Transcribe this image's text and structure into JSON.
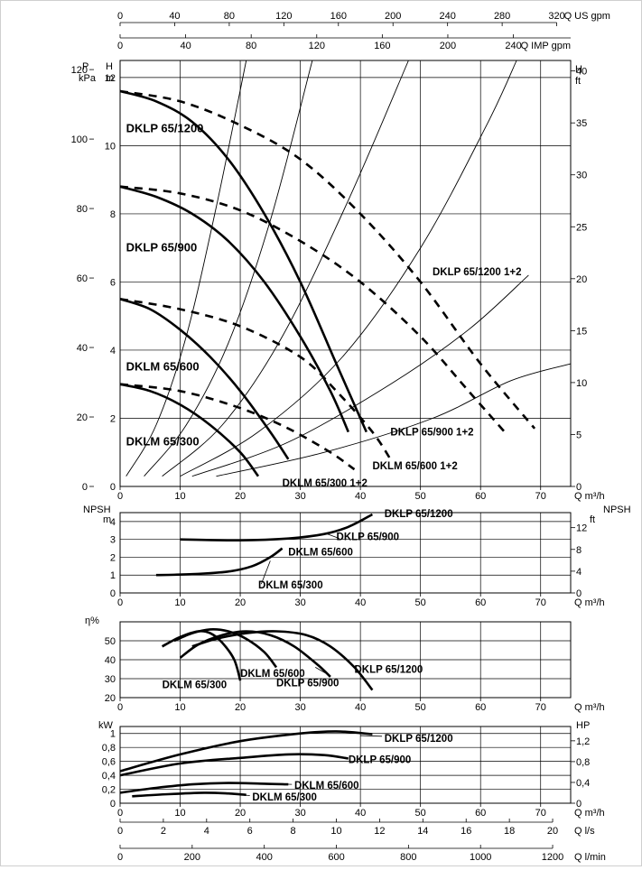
{
  "chart_data": [
    {
      "id": "top-axes",
      "type": "axis",
      "us_gpm": {
        "label": "Q US gpm",
        "ticks": [
          0,
          40,
          80,
          120,
          160,
          200,
          240,
          280,
          320
        ]
      },
      "imp_gpm": {
        "label": "Q IMP gpm",
        "ticks": [
          0,
          40,
          80,
          120,
          160,
          200,
          240
        ]
      }
    },
    {
      "id": "head",
      "type": "line",
      "xlabel": "Q m³/h",
      "ylabel_left_outer": "P",
      "ylabel_left_outer_unit": "kPa",
      "ylabel_left": "H",
      "ylabel_left_unit": "m",
      "ylabel_right": "H",
      "ylabel_right_unit": "ft",
      "xlim": [
        0,
        75
      ],
      "ylim": [
        0,
        12.5
      ],
      "xticks": [
        0,
        10,
        20,
        30,
        40,
        50,
        60,
        70
      ],
      "yticks_m": [
        0,
        2,
        4,
        6,
        8,
        10,
        12
      ],
      "yticks_kpa": [
        0,
        20,
        40,
        60,
        80,
        100,
        120
      ],
      "yticks_ft": [
        0,
        5,
        10,
        15,
        20,
        25,
        30,
        35,
        40
      ],
      "grid": true,
      "series": [
        {
          "name": "DKLP 65/1200",
          "dashed": false,
          "points": [
            [
              0,
              11.6
            ],
            [
              6,
              11.3
            ],
            [
              12,
              10.7
            ],
            [
              18,
              9.6
            ],
            [
              24,
              8.0
            ],
            [
              30,
              6.0
            ],
            [
              36,
              3.6
            ],
            [
              41,
              1.6
            ]
          ]
        },
        {
          "name": "DKLP 65/900",
          "dashed": false,
          "points": [
            [
              0,
              8.8
            ],
            [
              6,
              8.5
            ],
            [
              12,
              8.0
            ],
            [
              18,
              7.2
            ],
            [
              24,
              6.0
            ],
            [
              30,
              4.4
            ],
            [
              35,
              2.8
            ],
            [
              38,
              1.6
            ]
          ]
        },
        {
          "name": "DKLM 65/600",
          "dashed": false,
          "points": [
            [
              0,
              5.5
            ],
            [
              5,
              5.2
            ],
            [
              10,
              4.6
            ],
            [
              15,
              3.8
            ],
            [
              20,
              2.8
            ],
            [
              25,
              1.6
            ],
            [
              28,
              0.8
            ]
          ]
        },
        {
          "name": "DKLM 65/300",
          "dashed": false,
          "points": [
            [
              0,
              3.0
            ],
            [
              5,
              2.8
            ],
            [
              10,
              2.4
            ],
            [
              15,
              1.8
            ],
            [
              20,
              1.0
            ],
            [
              23,
              0.3
            ]
          ]
        },
        {
          "name": "DKLP 65/1200 1+2",
          "dashed": true,
          "points": [
            [
              0,
              11.6
            ],
            [
              10,
              11.3
            ],
            [
              20,
              10.6
            ],
            [
              30,
              9.6
            ],
            [
              40,
              8.0
            ],
            [
              50,
              6.0
            ],
            [
              60,
              3.6
            ],
            [
              69,
              1.7
            ]
          ]
        },
        {
          "name": "DKLP 65/900 1+2",
          "dashed": true,
          "points": [
            [
              0,
              8.8
            ],
            [
              10,
              8.6
            ],
            [
              20,
              8.1
            ],
            [
              30,
              7.2
            ],
            [
              40,
              6.0
            ],
            [
              50,
              4.4
            ],
            [
              58,
              2.8
            ],
            [
              64,
              1.6
            ]
          ]
        },
        {
          "name": "DKLM 65/600 1+2",
          "dashed": true,
          "points": [
            [
              0,
              5.5
            ],
            [
              10,
              5.2
            ],
            [
              20,
              4.7
            ],
            [
              30,
              3.8
            ],
            [
              36,
              2.8
            ],
            [
              42,
              1.6
            ],
            [
              45,
              0.8
            ]
          ]
        },
        {
          "name": "DKLM 65/300 1+2",
          "dashed": true,
          "points": [
            [
              0,
              3.0
            ],
            [
              10,
              2.8
            ],
            [
              20,
              2.3
            ],
            [
              28,
              1.7
            ],
            [
              35,
              1.0
            ],
            [
              39,
              0.5
            ]
          ]
        },
        {
          "name": "",
          "dashed": false,
          "system": true,
          "points": [
            [
              1,
              0.3
            ],
            [
              6,
              1.8
            ],
            [
              11,
              4.4
            ],
            [
              16,
              8.2
            ],
            [
              21,
              12.5
            ]
          ]
        },
        {
          "name": "",
          "dashed": false,
          "system": true,
          "points": [
            [
              4,
              0.3
            ],
            [
              11,
              1.8
            ],
            [
              18,
              4.2
            ],
            [
              25,
              7.8
            ],
            [
              32,
              12.5
            ]
          ]
        },
        {
          "name": "",
          "dashed": false,
          "system": true,
          "points": [
            [
              7,
              0.3
            ],
            [
              17,
              1.8
            ],
            [
              27,
              4.4
            ],
            [
              38,
              8.4
            ],
            [
              48,
              12.5
            ]
          ]
        },
        {
          "name": "",
          "dashed": false,
          "system": true,
          "points": [
            [
              10,
              0.3
            ],
            [
              23,
              1.6
            ],
            [
              37,
              3.8
            ],
            [
              50,
              7.0
            ],
            [
              61,
              10.6
            ],
            [
              66,
              12.5
            ]
          ]
        },
        {
          "name": "",
          "dashed": false,
          "system": true,
          "points": [
            [
              12,
              0.3
            ],
            [
              28,
              1.3
            ],
            [
              45,
              3.0
            ],
            [
              58,
              4.6
            ],
            [
              68,
              6.2
            ]
          ]
        },
        {
          "name": "",
          "dashed": false,
          "system": true,
          "points": [
            [
              16,
              0.3
            ],
            [
              34,
              1.0
            ],
            [
              52,
              2.0
            ],
            [
              65,
              3.1
            ],
            [
              75,
              3.6
            ]
          ]
        }
      ],
      "labels": [
        {
          "text": "DKLP 65/1200",
          "x": 1,
          "y": 10.4
        },
        {
          "text": "DKLP 65/900",
          "x": 1,
          "y": 6.9
        },
        {
          "text": "DKLM 65/600",
          "x": 1,
          "y": 3.4
        },
        {
          "text": "DKLM 65/300",
          "x": 1,
          "y": 1.2
        },
        {
          "text": "DKLP 65/1200 1+2",
          "x": 52,
          "y": 6.2
        },
        {
          "text": "DKLP 65/900 1+2",
          "x": 45,
          "y": 1.5
        },
        {
          "text": "DKLM 65/600 1+2",
          "x": 42,
          "y": 0.5
        },
        {
          "text": "DKLM 65/300 1+2",
          "x": 27,
          "y": 0.0
        }
      ]
    },
    {
      "id": "npsh",
      "type": "line",
      "xlabel": "Q m³/h",
      "ylabel_left": "NPSH",
      "ylabel_left_unit": "m",
      "ylabel_right": "NPSH",
      "ylabel_right_unit": "ft",
      "xlim": [
        0,
        75
      ],
      "ylim": [
        0,
        4.5
      ],
      "xticks": [
        0,
        10,
        20,
        30,
        40,
        50,
        60,
        70
      ],
      "yticks_m": [
        0,
        1,
        2,
        3,
        4
      ],
      "yticks_ft": [
        0,
        4,
        8,
        12
      ],
      "grid": true,
      "series": [
        {
          "name": "DKLP 65/1200",
          "points": [
            [
              10,
              3.0
            ],
            [
              20,
              2.95
            ],
            [
              28,
              3.05
            ],
            [
              34,
              3.3
            ],
            [
              38,
              3.7
            ],
            [
              42,
              4.4
            ]
          ]
        },
        {
          "name": "DKLM 65/600",
          "points": [
            [
              6,
              1.0
            ],
            [
              12,
              1.05
            ],
            [
              18,
              1.2
            ],
            [
              22,
              1.5
            ],
            [
              25,
              2.0
            ],
            [
              27,
              2.5
            ]
          ]
        }
      ],
      "labels": [
        {
          "text": "DKLP 65/1200",
          "x": 44,
          "y": 4.25
        },
        {
          "text": "DKLP 65/900",
          "x": 36,
          "y": 2.95
        },
        {
          "text": "DKLM 65/600",
          "x": 28,
          "y": 2.1
        },
        {
          "text": "DKLM 65/300",
          "x": 23,
          "y": 0.25
        }
      ]
    },
    {
      "id": "eff",
      "type": "line",
      "xlabel": "Q m³/h",
      "ylabel_left": "η%",
      "xlim": [
        0,
        75
      ],
      "ylim": [
        20,
        60
      ],
      "xticks": [
        0,
        10,
        20,
        30,
        40,
        50,
        60,
        70
      ],
      "yticks": [
        20,
        30,
        40,
        50
      ],
      "grid": true,
      "series": [
        {
          "name": "DKLM 65/300",
          "points": [
            [
              7,
              47
            ],
            [
              10,
              52
            ],
            [
              13,
              55
            ],
            [
              15,
              54
            ],
            [
              17,
              49
            ],
            [
              19,
              40
            ],
            [
              20,
              29
            ]
          ]
        },
        {
          "name": "DKLM 65/600",
          "points": [
            [
              9,
              50
            ],
            [
              12,
              54
            ],
            [
              15,
              56
            ],
            [
              18,
              55
            ],
            [
              21,
              51
            ],
            [
              24,
              44
            ],
            [
              26,
              36
            ]
          ]
        },
        {
          "name": "DKLP 65/900",
          "points": [
            [
              10,
              41
            ],
            [
              13,
              48
            ],
            [
              17,
              53
            ],
            [
              21,
              55
            ],
            [
              25,
              53
            ],
            [
              29,
              47
            ],
            [
              33,
              37
            ],
            [
              35,
              31
            ]
          ]
        },
        {
          "name": "DKLP 65/1200",
          "points": [
            [
              12,
              47
            ],
            [
              16,
              51
            ],
            [
              21,
              54
            ],
            [
              26,
              55
            ],
            [
              31,
              53
            ],
            [
              35,
              47
            ],
            [
              39,
              36
            ],
            [
              42,
              24
            ]
          ]
        }
      ],
      "labels": [
        {
          "text": "DKLM 65/300",
          "x": 7,
          "y": 25
        },
        {
          "text": "DKLM 65/600",
          "x": 20,
          "y": 31
        },
        {
          "text": "DKLP 65/900",
          "x": 26,
          "y": 26
        },
        {
          "text": "DKLP 65/1200",
          "x": 39,
          "y": 33
        }
      ]
    },
    {
      "id": "power",
      "type": "line",
      "xlabel": "Q m³/h",
      "ylabel_left": "kW",
      "ylabel_right": "HP",
      "xlim": [
        0,
        75
      ],
      "ylim": [
        0,
        1.1
      ],
      "xticks": [
        0,
        10,
        20,
        30,
        40,
        50,
        60,
        70
      ],
      "yticks": [
        0,
        0.2,
        0.4,
        0.6,
        0.8,
        1
      ],
      "ytick_labels": [
        "0",
        "0,2",
        "0,4",
        "0,6",
        "0,8",
        "1"
      ],
      "yticks_hp": [
        0,
        0.4,
        0.8,
        1.2
      ],
      "ytick_hp_labels": [
        "0",
        "0,4",
        "0,8",
        "1,2"
      ],
      "grid": true,
      "series": [
        {
          "name": "DKLP 65/1200",
          "points": [
            [
              0,
              0.46
            ],
            [
              10,
              0.7
            ],
            [
              20,
              0.89
            ],
            [
              30,
              1.0
            ],
            [
              36,
              1.03
            ],
            [
              42,
              0.99
            ]
          ]
        },
        {
          "name": "DKLP 65/900",
          "points": [
            [
              0,
              0.4
            ],
            [
              10,
              0.57
            ],
            [
              20,
              0.65
            ],
            [
              28,
              0.7
            ],
            [
              34,
              0.69
            ],
            [
              38,
              0.64
            ]
          ]
        },
        {
          "name": "DKLM 65/600",
          "points": [
            [
              0,
              0.15
            ],
            [
              6,
              0.22
            ],
            [
              12,
              0.27
            ],
            [
              18,
              0.29
            ],
            [
              24,
              0.28
            ],
            [
              28,
              0.27
            ]
          ]
        },
        {
          "name": "DKLM 65/300",
          "points": [
            [
              2,
              0.1
            ],
            [
              8,
              0.13
            ],
            [
              14,
              0.15
            ],
            [
              18,
              0.14
            ],
            [
              21,
              0.12
            ]
          ]
        }
      ],
      "labels": [
        {
          "text": "DKLP 65/1200",
          "x": 44,
          "y": 0.93
        },
        {
          "text": "DKLP 65/900",
          "x": 38,
          "y": 0.63
        },
        {
          "text": "DKLM 65/600",
          "x": 29,
          "y": 0.26
        },
        {
          "text": "DKLM 65/300",
          "x": 22,
          "y": 0.09
        }
      ]
    },
    {
      "id": "bottom-axes",
      "type": "axis",
      "ls": {
        "label": "Q l/s",
        "ticks": [
          0,
          2,
          4,
          6,
          8,
          10,
          12,
          14,
          16,
          18,
          20
        ]
      },
      "lmin": {
        "label": "Q l/min",
        "ticks": [
          0,
          200,
          400,
          600,
          800,
          1000,
          1200
        ]
      }
    }
  ]
}
